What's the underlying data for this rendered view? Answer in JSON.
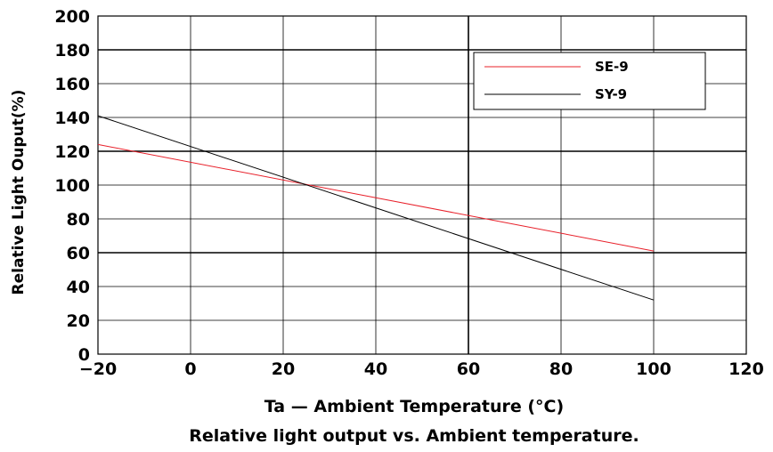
{
  "chart_data": {
    "type": "line",
    "title": "Relative light output vs. Ambient temperature.",
    "xlabel": "Ta — Ambient Temperature (°C)",
    "ylabel": "Relative Light Ouput(%)",
    "xlim": [
      -20,
      120
    ],
    "ylim": [
      0,
      200
    ],
    "x_ticks": [
      -20,
      0,
      20,
      40,
      60,
      80,
      100,
      120
    ],
    "x_tick_labels": [
      "−20",
      "0",
      "20",
      "40",
      "60",
      "80",
      "100",
      "120"
    ],
    "y_ticks": [
      0,
      20,
      40,
      60,
      80,
      100,
      120,
      140,
      160,
      180,
      200
    ],
    "y_tick_labels": [
      "0",
      "20",
      "40",
      "60",
      "80",
      "100",
      "120",
      "140",
      "160",
      "180",
      "200"
    ],
    "grid": true,
    "legend_position": "top-right",
    "series": [
      {
        "name": "SE-9",
        "color": "#e8202a",
        "x": [
          -20,
          100
        ],
        "values": [
          124,
          61
        ]
      },
      {
        "name": "SY-9",
        "color": "#000000",
        "x": [
          -20,
          100
        ],
        "values": [
          141,
          32
        ]
      }
    ]
  }
}
